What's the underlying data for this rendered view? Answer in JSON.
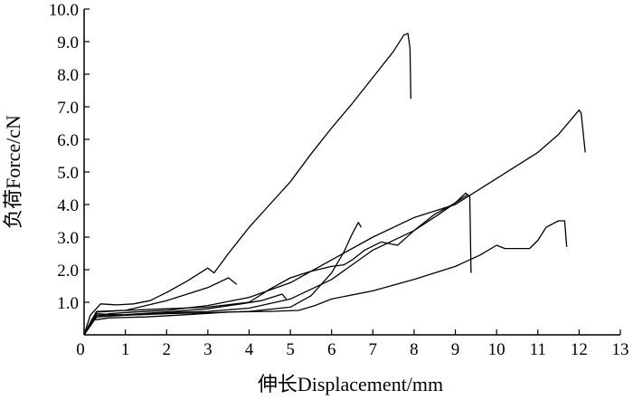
{
  "chart_data": {
    "type": "line",
    "title": "",
    "xlabel": "伸长Displacement/mm",
    "ylabel": "负荷Force/cN",
    "xlim": [
      0,
      13
    ],
    "ylim": [
      0,
      10
    ],
    "x_ticks": [
      "0",
      "1",
      "2",
      "3",
      "4",
      "5",
      "6",
      "7",
      "8",
      "9",
      "10",
      "11",
      "12",
      "13"
    ],
    "y_ticks": [
      "1.0",
      "2.0",
      "3.0",
      "4.0",
      "5.0",
      "6.0",
      "7.0",
      "8.0",
      "9.0",
      "10.0"
    ],
    "grid": false,
    "legend": "none",
    "line_color": "#000000",
    "series": [
      {
        "points": [
          [
            0,
            0
          ],
          [
            0.15,
            0.6
          ],
          [
            0.4,
            0.95
          ],
          [
            0.8,
            0.92
          ],
          [
            1.2,
            0.95
          ],
          [
            1.6,
            1.05
          ],
          [
            2.0,
            1.3
          ],
          [
            2.5,
            1.65
          ],
          [
            3.0,
            2.05
          ],
          [
            3.15,
            1.9
          ],
          [
            3.5,
            2.5
          ],
          [
            4.0,
            3.3
          ],
          [
            4.5,
            4.0
          ],
          [
            5.0,
            4.7
          ],
          [
            5.5,
            5.55
          ],
          [
            6.0,
            6.35
          ],
          [
            6.5,
            7.1
          ],
          [
            7.0,
            7.9
          ],
          [
            7.5,
            8.7
          ],
          [
            7.75,
            9.2
          ],
          [
            7.85,
            9.25
          ],
          [
            7.9,
            8.8
          ],
          [
            7.92,
            7.25
          ]
        ]
      },
      {
        "points": [
          [
            0,
            0
          ],
          [
            0.2,
            0.5
          ],
          [
            0.6,
            0.65
          ],
          [
            1.2,
            0.7
          ],
          [
            2.0,
            0.75
          ],
          [
            3.0,
            0.9
          ],
          [
            4.0,
            1.15
          ],
          [
            5.0,
            1.6
          ],
          [
            6.0,
            2.3
          ],
          [
            7.0,
            3.0
          ],
          [
            8.0,
            3.6
          ],
          [
            9.0,
            4.0
          ],
          [
            10.0,
            4.8
          ],
          [
            11.0,
            5.6
          ],
          [
            11.5,
            6.15
          ],
          [
            11.8,
            6.6
          ],
          [
            12.0,
            6.9
          ],
          [
            12.05,
            6.8
          ],
          [
            12.15,
            5.6
          ]
        ]
      },
      {
        "points": [
          [
            0,
            0
          ],
          [
            0.2,
            0.45
          ],
          [
            0.6,
            0.52
          ],
          [
            1.5,
            0.55
          ],
          [
            2.5,
            0.62
          ],
          [
            3.5,
            0.7
          ],
          [
            4.5,
            0.72
          ],
          [
            5.2,
            0.75
          ],
          [
            5.6,
            0.9
          ],
          [
            6.0,
            1.1
          ],
          [
            7.0,
            1.35
          ],
          [
            8.0,
            1.7
          ],
          [
            9.0,
            2.1
          ],
          [
            9.6,
            2.45
          ],
          [
            10.0,
            2.75
          ],
          [
            10.2,
            2.65
          ],
          [
            10.8,
            2.65
          ],
          [
            11.0,
            2.9
          ],
          [
            11.2,
            3.3
          ],
          [
            11.5,
            3.5
          ],
          [
            11.65,
            3.5
          ],
          [
            11.7,
            2.7
          ]
        ]
      },
      {
        "points": [
          [
            0,
            0
          ],
          [
            0.3,
            0.65
          ],
          [
            1.0,
            0.6
          ],
          [
            2.0,
            0.68
          ],
          [
            3.0,
            0.72
          ],
          [
            4.0,
            0.82
          ],
          [
            5.0,
            1.1
          ],
          [
            6.0,
            1.7
          ],
          [
            7.0,
            2.6
          ],
          [
            8.0,
            3.2
          ],
          [
            8.6,
            3.7
          ],
          [
            9.0,
            4.05
          ],
          [
            9.25,
            4.35
          ],
          [
            9.35,
            4.25
          ],
          [
            9.38,
            1.9
          ]
        ]
      },
      {
        "points": [
          [
            0,
            0
          ],
          [
            0.3,
            0.72
          ],
          [
            1.0,
            0.75
          ],
          [
            2.0,
            0.8
          ],
          [
            3.0,
            0.85
          ],
          [
            4.0,
            1.0
          ],
          [
            4.5,
            1.4
          ],
          [
            5.0,
            1.75
          ],
          [
            5.5,
            1.95
          ],
          [
            6.0,
            2.1
          ],
          [
            6.3,
            2.15
          ],
          [
            6.5,
            2.3
          ],
          [
            6.8,
            2.6
          ],
          [
            7.2,
            2.85
          ],
          [
            7.6,
            2.75
          ],
          [
            8.0,
            3.2
          ],
          [
            8.5,
            3.7
          ],
          [
            9.0,
            4.05
          ],
          [
            9.3,
            4.3
          ]
        ]
      },
      {
        "points": [
          [
            0,
            0
          ],
          [
            0.3,
            0.7
          ],
          [
            1.0,
            0.75
          ],
          [
            1.5,
            0.9
          ],
          [
            2.0,
            1.05
          ],
          [
            2.5,
            1.25
          ],
          [
            3.0,
            1.45
          ],
          [
            3.5,
            1.75
          ],
          [
            3.7,
            1.55
          ]
        ]
      },
      {
        "points": [
          [
            0,
            0
          ],
          [
            0.3,
            0.55
          ],
          [
            1.0,
            0.6
          ],
          [
            2.0,
            0.65
          ],
          [
            3.0,
            0.68
          ],
          [
            4.0,
            0.72
          ],
          [
            5.0,
            0.85
          ],
          [
            5.5,
            1.2
          ],
          [
            6.0,
            1.9
          ],
          [
            6.3,
            2.55
          ],
          [
            6.5,
            3.1
          ],
          [
            6.65,
            3.45
          ],
          [
            6.72,
            3.3
          ]
        ]
      },
      {
        "points": [
          [
            0,
            0
          ],
          [
            0.3,
            0.6
          ],
          [
            1.0,
            0.62
          ],
          [
            2.0,
            0.7
          ],
          [
            3.0,
            0.8
          ],
          [
            3.8,
            0.95
          ],
          [
            4.3,
            1.05
          ],
          [
            4.8,
            1.25
          ],
          [
            4.9,
            1.1
          ]
        ]
      }
    ]
  }
}
